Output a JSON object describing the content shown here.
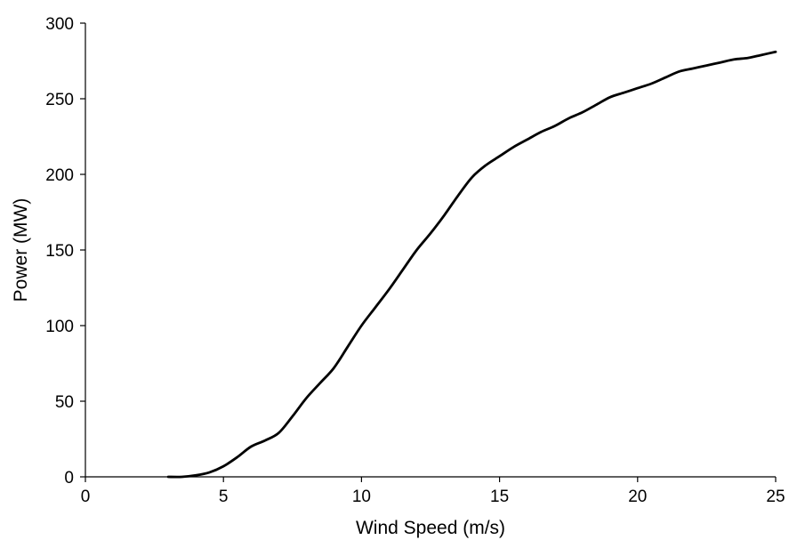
{
  "chart_data": {
    "type": "line",
    "title": "",
    "xlabel": "Wind Speed (m/s)",
    "ylabel": "Power (MW)",
    "xlim": [
      0,
      25
    ],
    "ylim": [
      0,
      300
    ],
    "xticks": [
      0,
      5,
      10,
      15,
      20,
      25
    ],
    "yticks": [
      0,
      50,
      100,
      150,
      200,
      250,
      300
    ],
    "grid": false,
    "legend": "none",
    "series": [
      {
        "color": "#000000",
        "x": [
          3,
          3.5,
          4,
          4.5,
          5,
          5.5,
          6,
          6.5,
          7,
          7.5,
          8,
          8.5,
          9,
          9.5,
          10,
          10.5,
          11,
          11.5,
          12,
          12.5,
          13,
          13.5,
          14,
          14.5,
          15,
          15.5,
          16,
          16.5,
          17,
          17.5,
          18,
          18.5,
          19,
          19.5,
          20,
          20.5,
          21,
          21.5,
          22,
          22.5,
          23,
          23.5,
          24,
          24.5,
          25
        ],
        "y": [
          0,
          0,
          1,
          3,
          7,
          13,
          20,
          24,
          29,
          40,
          52,
          62,
          72,
          86,
          100,
          112,
          124,
          137,
          150,
          161,
          173,
          186,
          198,
          206,
          212,
          218,
          223,
          228,
          232,
          237,
          241,
          246,
          251,
          254,
          257,
          260,
          264,
          268,
          270,
          272,
          274,
          276,
          277,
          279,
          281
        ]
      }
    ]
  }
}
